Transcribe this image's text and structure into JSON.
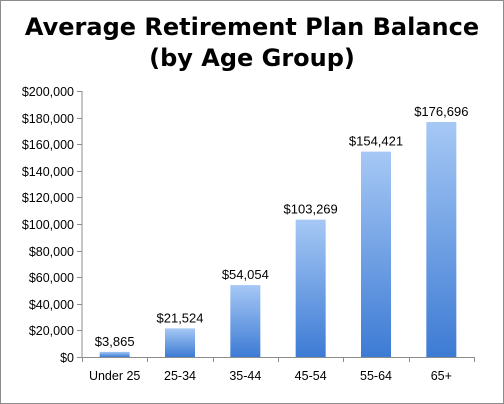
{
  "chart_data": {
    "type": "bar",
    "title_line1": "Average Retirement Plan Balance",
    "title_line2": "(by Age Group)",
    "categories": [
      "Under 25",
      "25-34",
      "35-44",
      "45-54",
      "55-64",
      "65+"
    ],
    "values": [
      3865,
      21524,
      54054,
      103269,
      154421,
      176696
    ],
    "value_labels": [
      "$3,865",
      "$21,524",
      "$54,054",
      "$103,269",
      "$154,421",
      "$176,696"
    ],
    "ylim": [
      0,
      200000
    ],
    "yticks": [
      0,
      20000,
      40000,
      60000,
      80000,
      100000,
      120000,
      140000,
      160000,
      180000,
      200000
    ],
    "ytick_labels": [
      "$0",
      "$20,000",
      "$40,000",
      "$60,000",
      "$80,000",
      "$100,000",
      "$120,000",
      "$140,000",
      "$160,000",
      "$180,000",
      "$200,000"
    ],
    "bar_color_top": "#a6c8f5",
    "bar_color_bottom": "#3d7bd4",
    "grid": false,
    "legend": "none"
  }
}
